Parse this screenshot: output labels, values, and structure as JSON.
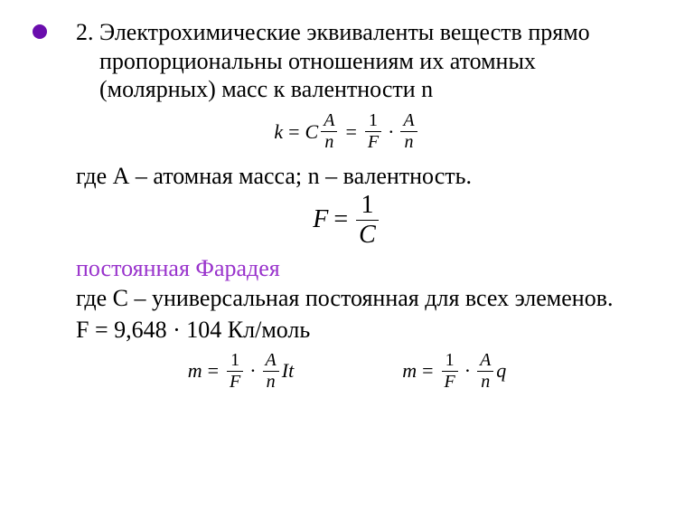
{
  "bullet_color": "#6a0dad",
  "faraday_color": "#9933cc",
  "text_color": "#000000",
  "fontsize_body": 26,
  "fontsize_formula_small": 22,
  "fontsize_formula_big": 28,
  "para1": "2. Электрохимические эквиваленты веществ прямо пропорциональны отношениям их атомных (молярных) масс к валентности n",
  "formula1": {
    "lhs_var": "k",
    "coef": "C",
    "frac1_num": "A",
    "frac1_den": "n",
    "mid_frac_num": "1",
    "mid_frac_den": "F",
    "frac2_num": "A",
    "frac2_den": "n"
  },
  "line_where1": "где А – атомная масса; n – валентность.",
  "formula2": {
    "lhs_var": "F",
    "frac_num": "1",
    "frac_den": "C"
  },
  "line_faraday": "постоянная Фарадея",
  "line_where2": "где С – универсальная постоянная для всех элеменов.",
  "line_F": "F = 9,648 · 104 Кл/моль",
  "formula3a": {
    "lhs_var": "m",
    "frac1_num": "1",
    "frac1_den": "F",
    "frac2_num": "A",
    "frac2_den": "n",
    "tail": "It"
  },
  "formula3b": {
    "lhs_var": "m",
    "frac1_num": "1",
    "frac1_den": "F",
    "frac2_num": "A",
    "frac2_den": "n",
    "tail": "q"
  }
}
